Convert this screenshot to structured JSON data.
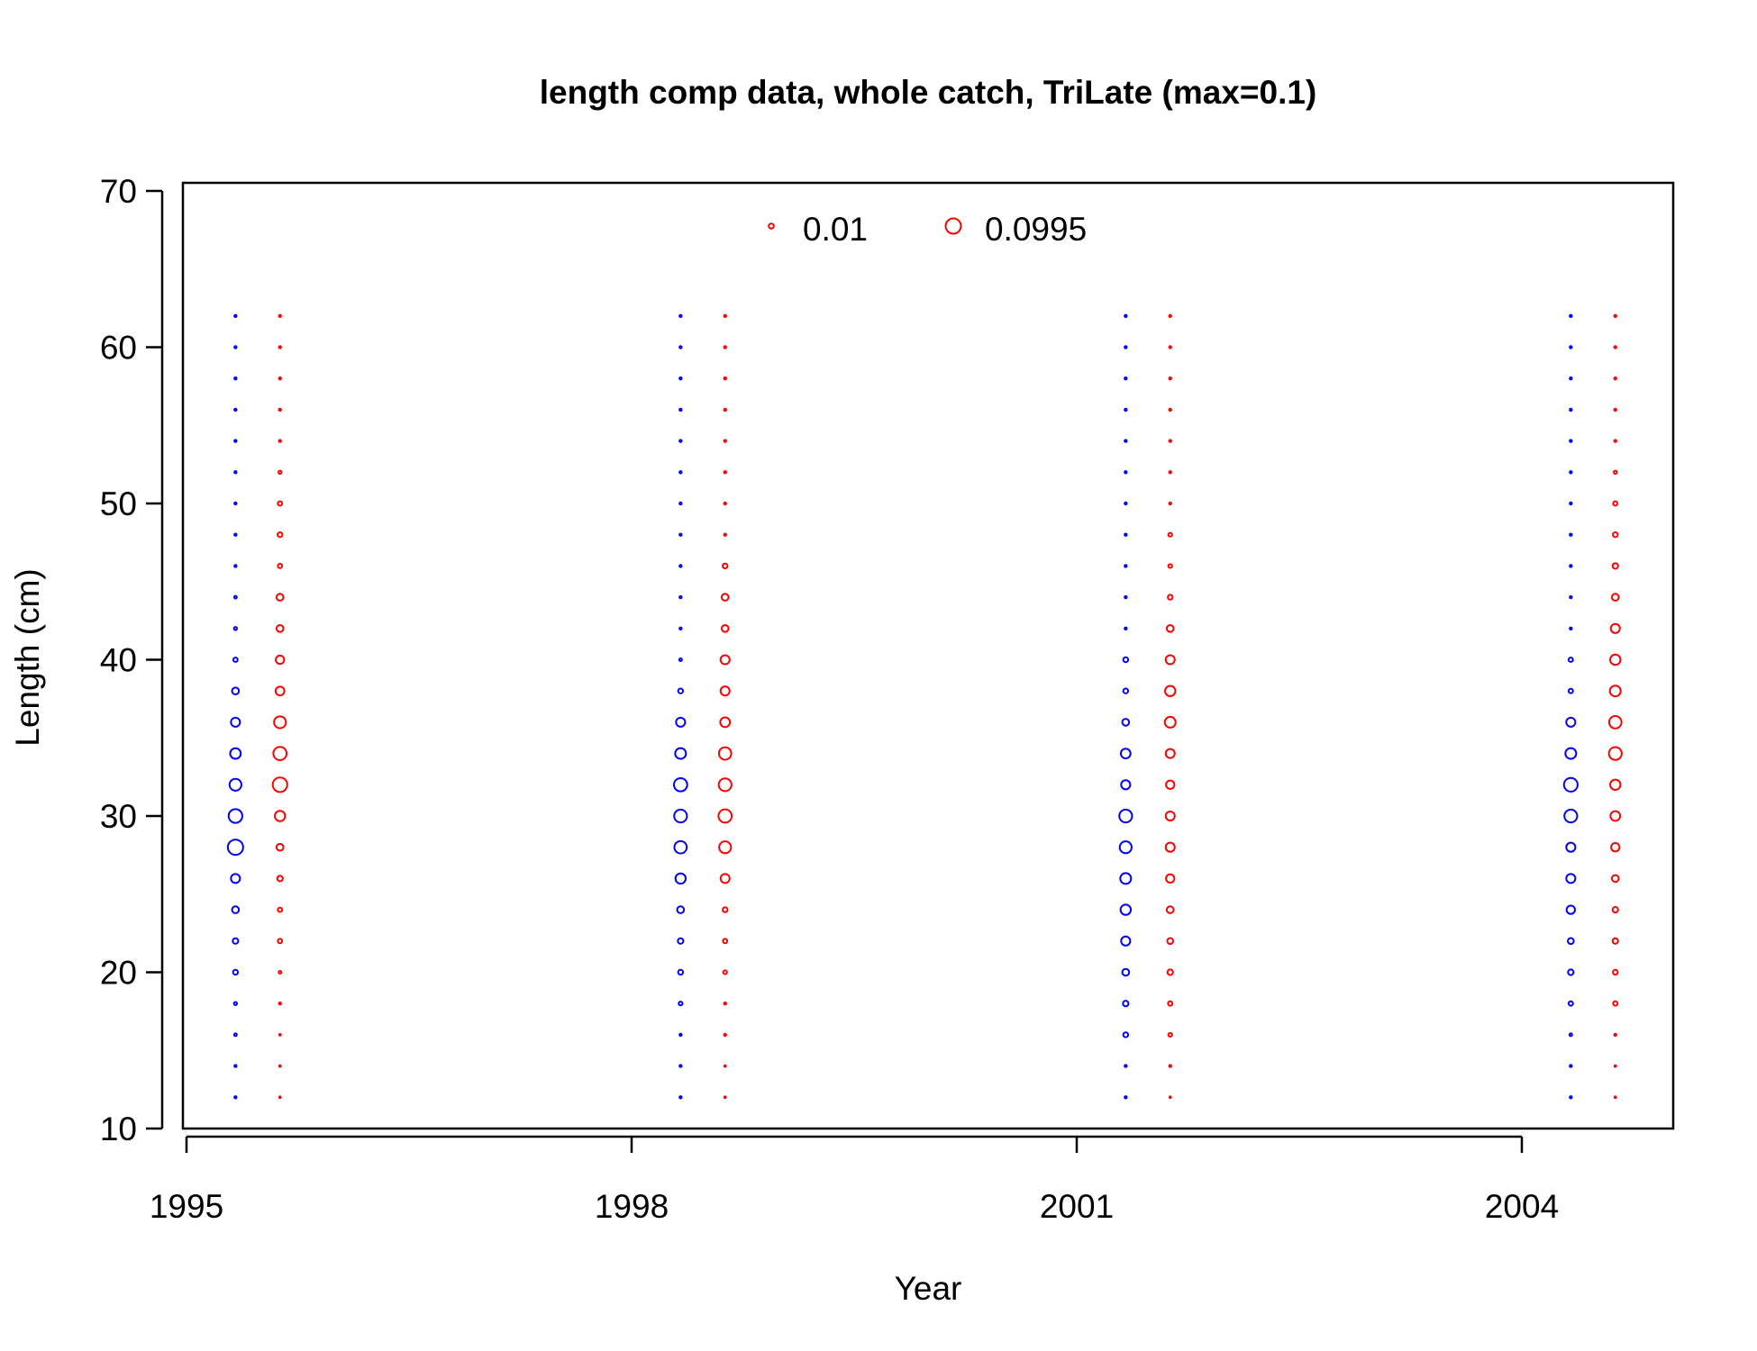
{
  "chart_data": {
    "type": "scatter",
    "title": "length comp data, whole catch, TriLate (max=0.1)",
    "xlabel": "Year",
    "ylabel": "Length (cm)",
    "xlim": [
      1995,
      2005.8
    ],
    "ylim": [
      10,
      70
    ],
    "x_ticks": [
      "1995",
      "1998",
      "2001",
      "2004"
    ],
    "y_ticks": [
      "10",
      "20",
      "30",
      "40",
      "50",
      "60",
      "70"
    ],
    "legend": {
      "position": "top",
      "entries": [
        {
          "label": "0.01",
          "value": 0.01
        },
        {
          "label": "0.0995",
          "value": 0.0995
        }
      ]
    },
    "bubble_max": 0.1,
    "lengths": [
      12,
      14,
      16,
      18,
      20,
      22,
      24,
      26,
      28,
      30,
      32,
      34,
      36,
      38,
      40,
      42,
      44,
      46,
      48,
      50,
      52,
      54,
      56,
      58,
      60,
      62
    ],
    "series": [
      {
        "color": "#0000FF",
        "x": 1995.33,
        "values": [
          0.002,
          0.002,
          0.003,
          0.004,
          0.01,
          0.013,
          0.02,
          0.035,
          0.1,
          0.08,
          0.06,
          0.048,
          0.035,
          0.02,
          0.008,
          0.004,
          0.003,
          0.002,
          0.002,
          0.002,
          0.002,
          0.002,
          0.002,
          0.002,
          0.002,
          0.002
        ]
      },
      {
        "color": "#FF0000",
        "x": 1995.63,
        "values": [
          0.001,
          0.001,
          0.001,
          0.002,
          0.003,
          0.008,
          0.008,
          0.013,
          0.02,
          0.045,
          0.09,
          0.075,
          0.06,
          0.033,
          0.03,
          0.02,
          0.02,
          0.008,
          0.01,
          0.008,
          0.004,
          0.002,
          0.002,
          0.002,
          0.002,
          0.002
        ]
      },
      {
        "color": "#0000FF",
        "x": 1998.33,
        "values": [
          0.002,
          0.002,
          0.002,
          0.006,
          0.01,
          0.013,
          0.02,
          0.045,
          0.065,
          0.07,
          0.075,
          0.05,
          0.035,
          0.01,
          0.003,
          0.002,
          0.002,
          0.002,
          0.002,
          0.002,
          0.002,
          0.002,
          0.002,
          0.002,
          0.002,
          0.002
        ]
      },
      {
        "color": "#FF0000",
        "x": 1998.63,
        "values": [
          0.001,
          0.001,
          0.002,
          0.002,
          0.006,
          0.008,
          0.01,
          0.035,
          0.06,
          0.075,
          0.07,
          0.065,
          0.04,
          0.035,
          0.035,
          0.02,
          0.02,
          0.01,
          0.002,
          0.002,
          0.002,
          0.002,
          0.002,
          0.002,
          0.002,
          0.002
        ]
      },
      {
        "color": "#0000FF",
        "x": 2001.33,
        "values": [
          0.002,
          0.002,
          0.01,
          0.013,
          0.02,
          0.035,
          0.045,
          0.05,
          0.06,
          0.07,
          0.035,
          0.04,
          0.02,
          0.01,
          0.01,
          0.002,
          0.002,
          0.002,
          0.002,
          0.002,
          0.002,
          0.002,
          0.002,
          0.002,
          0.002,
          0.002
        ]
      },
      {
        "color": "#FF0000",
        "x": 2001.63,
        "values": [
          0.001,
          0.002,
          0.006,
          0.008,
          0.013,
          0.015,
          0.02,
          0.03,
          0.035,
          0.035,
          0.03,
          0.035,
          0.05,
          0.045,
          0.035,
          0.02,
          0.01,
          0.006,
          0.006,
          0.002,
          0.002,
          0.002,
          0.002,
          0.002,
          0.002,
          0.002
        ]
      },
      {
        "color": "#0000FF",
        "x": 2004.33,
        "values": [
          0.002,
          0.002,
          0.003,
          0.008,
          0.013,
          0.015,
          0.03,
          0.035,
          0.035,
          0.07,
          0.08,
          0.05,
          0.035,
          0.008,
          0.008,
          0.002,
          0.002,
          0.002,
          0.002,
          0.002,
          0.002,
          0.002,
          0.002,
          0.002,
          0.002,
          0.002
        ]
      },
      {
        "color": "#FF0000",
        "x": 2004.63,
        "values": [
          0.001,
          0.001,
          0.002,
          0.008,
          0.01,
          0.013,
          0.013,
          0.02,
          0.03,
          0.04,
          0.045,
          0.07,
          0.065,
          0.05,
          0.045,
          0.035,
          0.02,
          0.013,
          0.01,
          0.008,
          0.004,
          0.002,
          0.002,
          0.002,
          0.002,
          0.002
        ]
      }
    ]
  }
}
